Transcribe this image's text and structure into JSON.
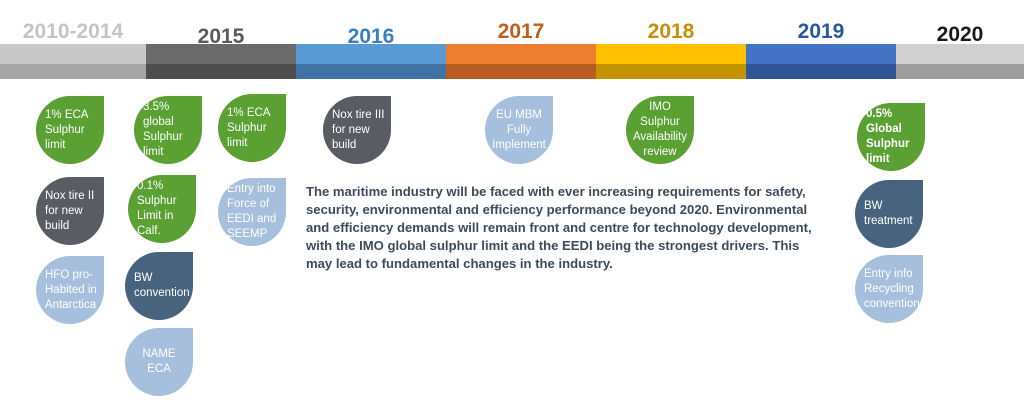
{
  "timeline": {
    "years": [
      {
        "label": "2010-2014",
        "color": "#c4c4c4"
      },
      {
        "label": "2015",
        "color": "#5b5b5b"
      },
      {
        "label": "2016",
        "color": "#3a7dc3"
      },
      {
        "label": "2017",
        "color": "#c0601e"
      },
      {
        "label": "2018",
        "color": "#c4900a"
      },
      {
        "label": "2019",
        "color": "#2b579e"
      },
      {
        "label": "2020",
        "color": "#1a1a1a"
      }
    ]
  },
  "milestones": {
    "y2010_ECA": "1% ECA Sulphur limit",
    "y2010_NoxII": "Nox tire II for new build",
    "y2010_HFO": "HFO pro-Habited in Antarctica",
    "y2015_global": "3.5% global Sulphur limit",
    "y2015_calf": "0.1% Sulphur Limit in Calf.",
    "y2015_bw": "BW convention",
    "y2015_name": "NAME ECA",
    "y2015b_eca": "1% ECA Sulphur limit",
    "y2015b_eedi": "Entry into Force of EEDI and SEEMP",
    "y2016_nox3": "Nox tire III for new build",
    "y2017_eu": "EU MBM Fully Implement",
    "y2018_imo": "IMO Sulphur Availability review",
    "y2020_global": "0.5% Global Sulphur limit",
    "y2020_bw": "BW treatment",
    "y2020_recycling": "Entry info Recycling convention"
  },
  "description": "The maritime industry will be faced with ever increasing requirements for safety, security, environmental and efficiency performance beyond 2020. Environmental and efficiency demands will remain front and centre for technology development, with the IMO global sulphur limit and the EEDI being the strongest drivers. This may lead to fundamental changes in the industry.",
  "colors": {
    "green": "#5aa032",
    "dark_gray": "#595d63",
    "light_blue": "#a6bfdd",
    "steel_blue": "#48637e"
  }
}
